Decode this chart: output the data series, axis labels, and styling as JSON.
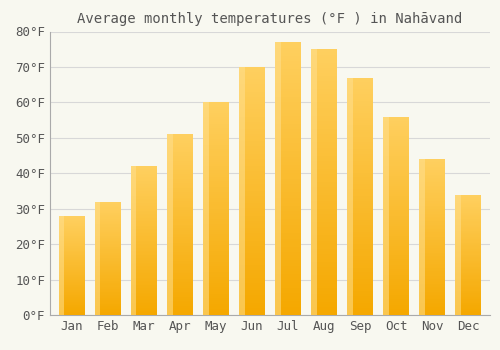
{
  "title": "Average monthly temperatures (°F ) in Nahāvand",
  "months": [
    "Jan",
    "Feb",
    "Mar",
    "Apr",
    "May",
    "Jun",
    "Jul",
    "Aug",
    "Sep",
    "Oct",
    "Nov",
    "Dec"
  ],
  "values": [
    28,
    32,
    42,
    51,
    60,
    70,
    77,
    75,
    67,
    56,
    44,
    34
  ],
  "bar_color_bottom": "#F5A800",
  "bar_color_top": "#FFD060",
  "bar_color_left": "#FFE090",
  "background_color": "#F8F8F0",
  "grid_color": "#D8D8D8",
  "text_color": "#555555",
  "ylim": [
    0,
    80
  ],
  "yticks": [
    0,
    10,
    20,
    30,
    40,
    50,
    60,
    70,
    80
  ],
  "ytick_labels": [
    "0°F",
    "10°F",
    "20°F",
    "30°F",
    "40°F",
    "50°F",
    "60°F",
    "70°F",
    "80°F"
  ],
  "title_fontsize": 10,
  "tick_fontsize": 9,
  "bar_width": 0.72
}
